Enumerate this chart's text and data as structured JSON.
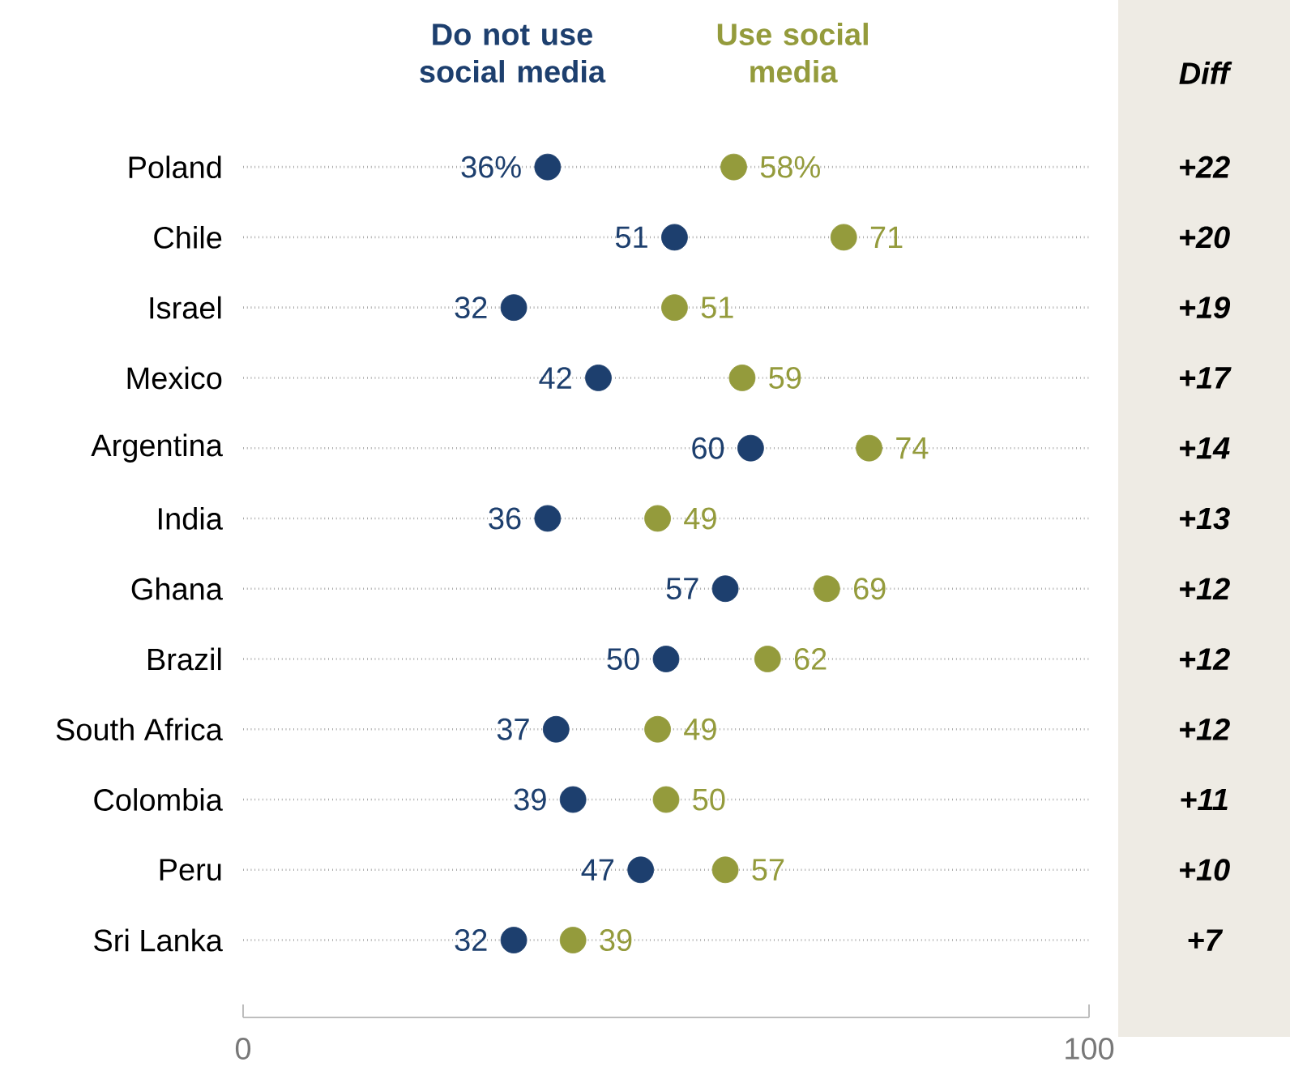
{
  "chart_data": {
    "type": "scatter",
    "orientation": "horizontal",
    "legend": "top",
    "grid": "y",
    "categories": [
      "Poland",
      "Chile",
      "Israel",
      "Mexico",
      "Argentina",
      "India",
      "Ghana",
      "Brazil",
      "South Africa",
      "Colombia",
      "Peru",
      "Sri Lanka"
    ],
    "series": [
      {
        "name": "Do not use social media",
        "color": "#1d3f6e",
        "values": [
          36,
          51,
          32,
          42,
          60,
          36,
          57,
          50,
          37,
          39,
          47,
          32
        ],
        "value_labels": [
          "36%",
          "51",
          "32",
          "42",
          "60",
          "36",
          "57",
          "50",
          "37",
          "39",
          "47",
          "32"
        ]
      },
      {
        "name": "Use social media",
        "color": "#949b3c",
        "values": [
          58,
          71,
          51,
          59,
          74,
          49,
          69,
          62,
          49,
          50,
          57,
          39
        ],
        "value_labels": [
          "58%",
          "71",
          "51",
          "59",
          "74",
          "49",
          "69",
          "62",
          "49",
          "50",
          "57",
          "39"
        ]
      }
    ],
    "xlim": [
      0,
      100
    ],
    "xticks": [
      0,
      100
    ],
    "annotations": [
      "Diff",
      "+22",
      "+20",
      "+19",
      "+17",
      "+14",
      "+13",
      "+12",
      "+12",
      "+12",
      "+11",
      "+10",
      "+7"
    ]
  }
}
